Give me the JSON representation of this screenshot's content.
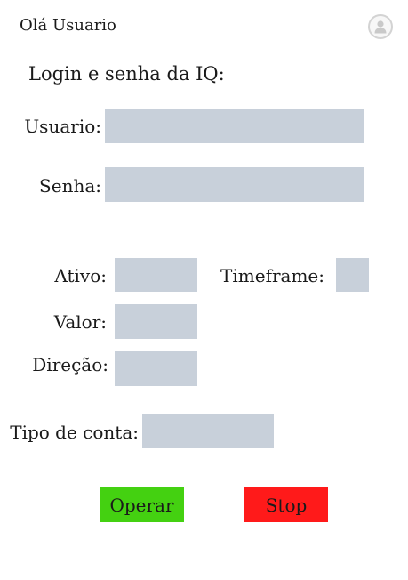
{
  "header": {
    "greeting": "Olá Usuario",
    "avatar_icon": "user-avatar-icon"
  },
  "login": {
    "title": "Login e senha da IQ:",
    "user_label": "Usuario:",
    "user_value": "",
    "password_label": "Senha:",
    "password_value": ""
  },
  "trade": {
    "asset_label": "Ativo:",
    "asset_value": "",
    "timeframe_label": "Timeframe:",
    "timeframe_value": "",
    "amount_label": "Valor:",
    "amount_value": "",
    "direction_label": "Direção:",
    "direction_value": "",
    "account_type_label": "Tipo de conta:",
    "account_type_value": ""
  },
  "actions": {
    "operate_label": "Operar",
    "operate_color": "#44d111",
    "stop_label": "Stop",
    "stop_color": "#ff1a1a"
  },
  "colors": {
    "field_bg": "#c8d0da"
  }
}
